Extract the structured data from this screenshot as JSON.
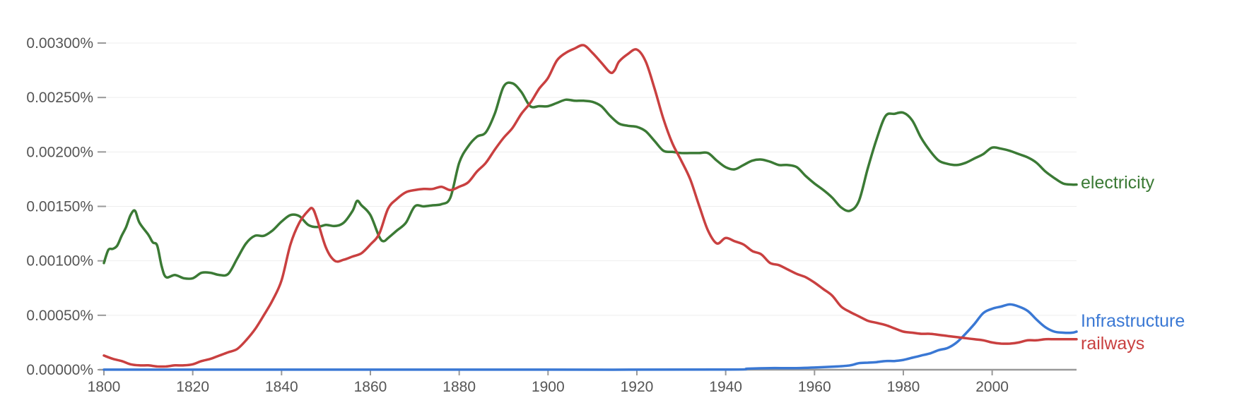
{
  "chart_data": {
    "type": "line",
    "title": "",
    "xlabel": "",
    "ylabel": "",
    "xlim": [
      1800,
      2019
    ],
    "ylim": [
      0,
      0.003
    ],
    "grid": true,
    "legend": "line-end labels, right",
    "y_ticks": [
      {
        "value": 0,
        "label": "0.00000%"
      },
      {
        "value": 0.0005,
        "label": "0.00050%"
      },
      {
        "value": 0.001,
        "label": "0.00100%"
      },
      {
        "value": 0.0015,
        "label": "0.00150%"
      },
      {
        "value": 0.002,
        "label": "0.00200%"
      },
      {
        "value": 0.0025,
        "label": "0.00250%"
      },
      {
        "value": 0.003,
        "label": "0.00300%"
      }
    ],
    "x_ticks": [
      {
        "value": 1800,
        "label": "1800"
      },
      {
        "value": 1820,
        "label": "1820"
      },
      {
        "value": 1840,
        "label": "1840"
      },
      {
        "value": 1860,
        "label": "1860"
      },
      {
        "value": 1880,
        "label": "1880"
      },
      {
        "value": 1900,
        "label": "1900"
      },
      {
        "value": 1920,
        "label": "1920"
      },
      {
        "value": 1940,
        "label": "1940"
      },
      {
        "value": 1960,
        "label": "1960"
      },
      {
        "value": 1980,
        "label": "1980"
      },
      {
        "value": 2000,
        "label": "2000"
      }
    ],
    "series": [
      {
        "name": "electricity",
        "color": "#3b7a35",
        "x": [
          1800,
          1801,
          1802,
          1803,
          1804,
          1805,
          1806,
          1807,
          1808,
          1810,
          1811,
          1812,
          1813,
          1814,
          1816,
          1818,
          1820,
          1822,
          1824,
          1826,
          1828,
          1830,
          1832,
          1834,
          1836,
          1838,
          1840,
          1842,
          1844,
          1846,
          1848,
          1850,
          1852,
          1854,
          1856,
          1857,
          1858,
          1860,
          1862,
          1863,
          1864,
          1866,
          1868,
          1870,
          1872,
          1874,
          1876,
          1878,
          1880,
          1882,
          1884,
          1886,
          1888,
          1890,
          1892,
          1894,
          1896,
          1898,
          1900,
          1902,
          1904,
          1906,
          1908,
          1910,
          1912,
          1914,
          1916,
          1918,
          1920,
          1922,
          1924,
          1926,
          1928,
          1930,
          1932,
          1934,
          1936,
          1938,
          1940,
          1942,
          1944,
          1946,
          1948,
          1950,
          1952,
          1954,
          1956,
          1958,
          1960,
          1962,
          1964,
          1966,
          1968,
          1970,
          1972,
          1974,
          1976,
          1978,
          1980,
          1982,
          1984,
          1986,
          1988,
          1990,
          1992,
          1994,
          1996,
          1998,
          2000,
          2002,
          2004,
          2006,
          2008,
          2010,
          2012,
          2014,
          2016,
          2018,
          2019
        ],
        "values": [
          0.00098,
          0.0011,
          0.00111,
          0.00114,
          0.00123,
          0.00131,
          0.00142,
          0.00146,
          0.00135,
          0.00124,
          0.00117,
          0.00114,
          0.00095,
          0.00085,
          0.00087,
          0.00084,
          0.00084,
          0.00089,
          0.00089,
          0.00087,
          0.00088,
          0.00102,
          0.00116,
          0.00123,
          0.00123,
          0.00128,
          0.00136,
          0.00142,
          0.00141,
          0.00133,
          0.00131,
          0.00133,
          0.00132,
          0.00135,
          0.00146,
          0.00155,
          0.00151,
          0.00142,
          0.00122,
          0.00118,
          0.00121,
          0.00128,
          0.00135,
          0.0015,
          0.0015,
          0.00151,
          0.00152,
          0.00158,
          0.0019,
          0.00205,
          0.00214,
          0.00218,
          0.00235,
          0.0026,
          0.00263,
          0.00255,
          0.00242,
          0.00242,
          0.00242,
          0.00245,
          0.00248,
          0.00247,
          0.00247,
          0.00246,
          0.00242,
          0.00233,
          0.00226,
          0.00224,
          0.00223,
          0.00219,
          0.0021,
          0.00201,
          0.002,
          0.00199,
          0.00199,
          0.00199,
          0.00199,
          0.00192,
          0.00186,
          0.00184,
          0.00188,
          0.00192,
          0.00193,
          0.00191,
          0.00188,
          0.00188,
          0.00186,
          0.00178,
          0.00171,
          0.00165,
          0.00158,
          0.00149,
          0.00146,
          0.00155,
          0.00185,
          0.00212,
          0.00233,
          0.00235,
          0.00236,
          0.00229,
          0.00213,
          0.00201,
          0.00192,
          0.00189,
          0.00188,
          0.0019,
          0.00194,
          0.00198,
          0.00204,
          0.00203,
          0.00201,
          0.00198,
          0.00195,
          0.0019,
          0.00182,
          0.00176,
          0.00171,
          0.0017,
          0.0017
        ]
      },
      {
        "name": "Infrastructure",
        "color": "#3a78d4",
        "x": [
          1800,
          1860,
          1900,
          1940,
          1945,
          1950,
          1955,
          1960,
          1965,
          1968,
          1970,
          1972,
          1974,
          1976,
          1978,
          1980,
          1982,
          1984,
          1986,
          1988,
          1990,
          1992,
          1994,
          1996,
          1998,
          2000,
          2002,
          2004,
          2006,
          2008,
          2010,
          2012,
          2014,
          2016,
          2018,
          2019
        ],
        "values": [
          8e-07,
          8e-07,
          8e-07,
          1e-06,
          1e-05,
          1.5e-05,
          1.5e-05,
          2e-05,
          3e-05,
          4e-05,
          6e-05,
          6.5e-05,
          7e-05,
          8e-05,
          8e-05,
          9e-05,
          0.00011,
          0.00013,
          0.00015,
          0.00018,
          0.0002,
          0.00025,
          0.00033,
          0.00042,
          0.00052,
          0.00056,
          0.00058,
          0.0006,
          0.00058,
          0.00054,
          0.00046,
          0.00039,
          0.00035,
          0.00034,
          0.00034,
          0.00035
        ]
      },
      {
        "name": "railways",
        "color": "#c94040",
        "x": [
          1800,
          1802,
          1804,
          1806,
          1808,
          1810,
          1812,
          1814,
          1816,
          1818,
          1820,
          1822,
          1824,
          1826,
          1828,
          1830,
          1832,
          1834,
          1836,
          1838,
          1840,
          1842,
          1844,
          1846,
          1847,
          1848,
          1850,
          1852,
          1854,
          1856,
          1858,
          1860,
          1862,
          1864,
          1866,
          1868,
          1870,
          1872,
          1874,
          1876,
          1878,
          1880,
          1882,
          1884,
          1886,
          1888,
          1890,
          1892,
          1894,
          1896,
          1898,
          1900,
          1902,
          1904,
          1906,
          1908,
          1910,
          1912,
          1914,
          1915,
          1916,
          1918,
          1920,
          1922,
          1924,
          1926,
          1928,
          1930,
          1932,
          1934,
          1936,
          1938,
          1940,
          1942,
          1944,
          1946,
          1948,
          1950,
          1952,
          1954,
          1956,
          1958,
          1960,
          1962,
          1964,
          1966,
          1968,
          1970,
          1972,
          1974,
          1976,
          1978,
          1980,
          1982,
          1984,
          1986,
          1988,
          1990,
          1992,
          1994,
          1996,
          1998,
          2000,
          2002,
          2004,
          2006,
          2008,
          2010,
          2012,
          2014,
          2016,
          2018,
          2019
        ],
        "values": [
          0.00013,
          0.0001,
          8e-05,
          5e-05,
          4e-05,
          4e-05,
          3e-05,
          3e-05,
          4e-05,
          4e-05,
          5e-05,
          8e-05,
          0.0001,
          0.00013,
          0.00016,
          0.00019,
          0.00027,
          0.00037,
          0.0005,
          0.00064,
          0.00082,
          0.00115,
          0.00135,
          0.00146,
          0.00148,
          0.00138,
          0.00112,
          0.001,
          0.00101,
          0.00104,
          0.00107,
          0.00115,
          0.00125,
          0.00148,
          0.00157,
          0.00163,
          0.00165,
          0.00166,
          0.00166,
          0.00168,
          0.00165,
          0.00168,
          0.00172,
          0.00182,
          0.0019,
          0.00202,
          0.00213,
          0.00222,
          0.00235,
          0.00245,
          0.00258,
          0.00268,
          0.00284,
          0.00291,
          0.00295,
          0.00298,
          0.00291,
          0.00282,
          0.00273,
          0.00275,
          0.00283,
          0.0029,
          0.00294,
          0.00283,
          0.00258,
          0.0023,
          0.00208,
          0.00192,
          0.00175,
          0.00151,
          0.00128,
          0.00116,
          0.00121,
          0.00118,
          0.00115,
          0.00109,
          0.00106,
          0.00098,
          0.00096,
          0.00092,
          0.00088,
          0.00085,
          0.0008,
          0.00074,
          0.00068,
          0.00058,
          0.00053,
          0.00049,
          0.00045,
          0.00043,
          0.00041,
          0.00038,
          0.00035,
          0.00034,
          0.00033,
          0.00033,
          0.00032,
          0.00031,
          0.0003,
          0.00029,
          0.00028,
          0.00027,
          0.00025,
          0.00024,
          0.00024,
          0.00025,
          0.00027,
          0.00027,
          0.00028,
          0.00028,
          0.00028,
          0.00028,
          0.00028
        ]
      }
    ]
  }
}
